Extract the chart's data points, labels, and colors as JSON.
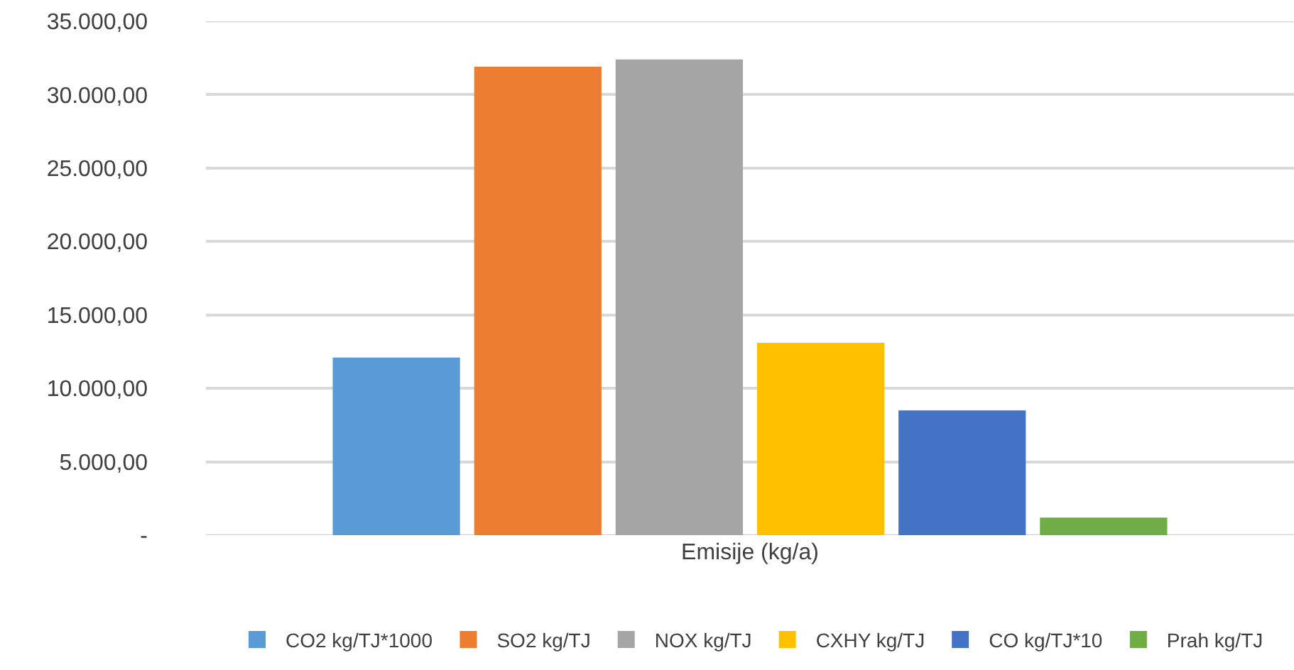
{
  "chart_data": {
    "type": "bar",
    "xlabel": null,
    "categories": [
      "Emisije (kg/a)"
    ],
    "series": [
      {
        "name": "CO2 kg/TJ*1000",
        "color": "#5b9bd5",
        "values": [
          12100
        ]
      },
      {
        "name": "SO2 kg/TJ",
        "color": "#ed7d31",
        "values": [
          31900
        ]
      },
      {
        "name": "NOX kg/TJ",
        "color": "#a5a5a5",
        "values": [
          32400
        ]
      },
      {
        "name": "CXHY kg/TJ",
        "color": "#ffc000",
        "values": [
          13100
        ]
      },
      {
        "name": "CO kg/TJ*10",
        "color": "#4472c4",
        "values": [
          8500
        ]
      },
      {
        "name": "Prah kg/TJ",
        "color": "#70ad47",
        "values": [
          1200
        ]
      }
    ],
    "ylim": [
      0,
      35000
    ],
    "yticks": [
      {
        "value": 0,
        "label": "-"
      },
      {
        "value": 5000,
        "label": "5.000,00"
      },
      {
        "value": 10000,
        "label": "10.000,00"
      },
      {
        "value": 15000,
        "label": "15.000,00"
      },
      {
        "value": 20000,
        "label": "20.000,00"
      },
      {
        "value": 25000,
        "label": "25.000,00"
      },
      {
        "value": 30000,
        "label": "30.000,00"
      },
      {
        "value": 35000,
        "label": "35.000,00"
      }
    ],
    "grid": "y",
    "legend": "bottom"
  }
}
